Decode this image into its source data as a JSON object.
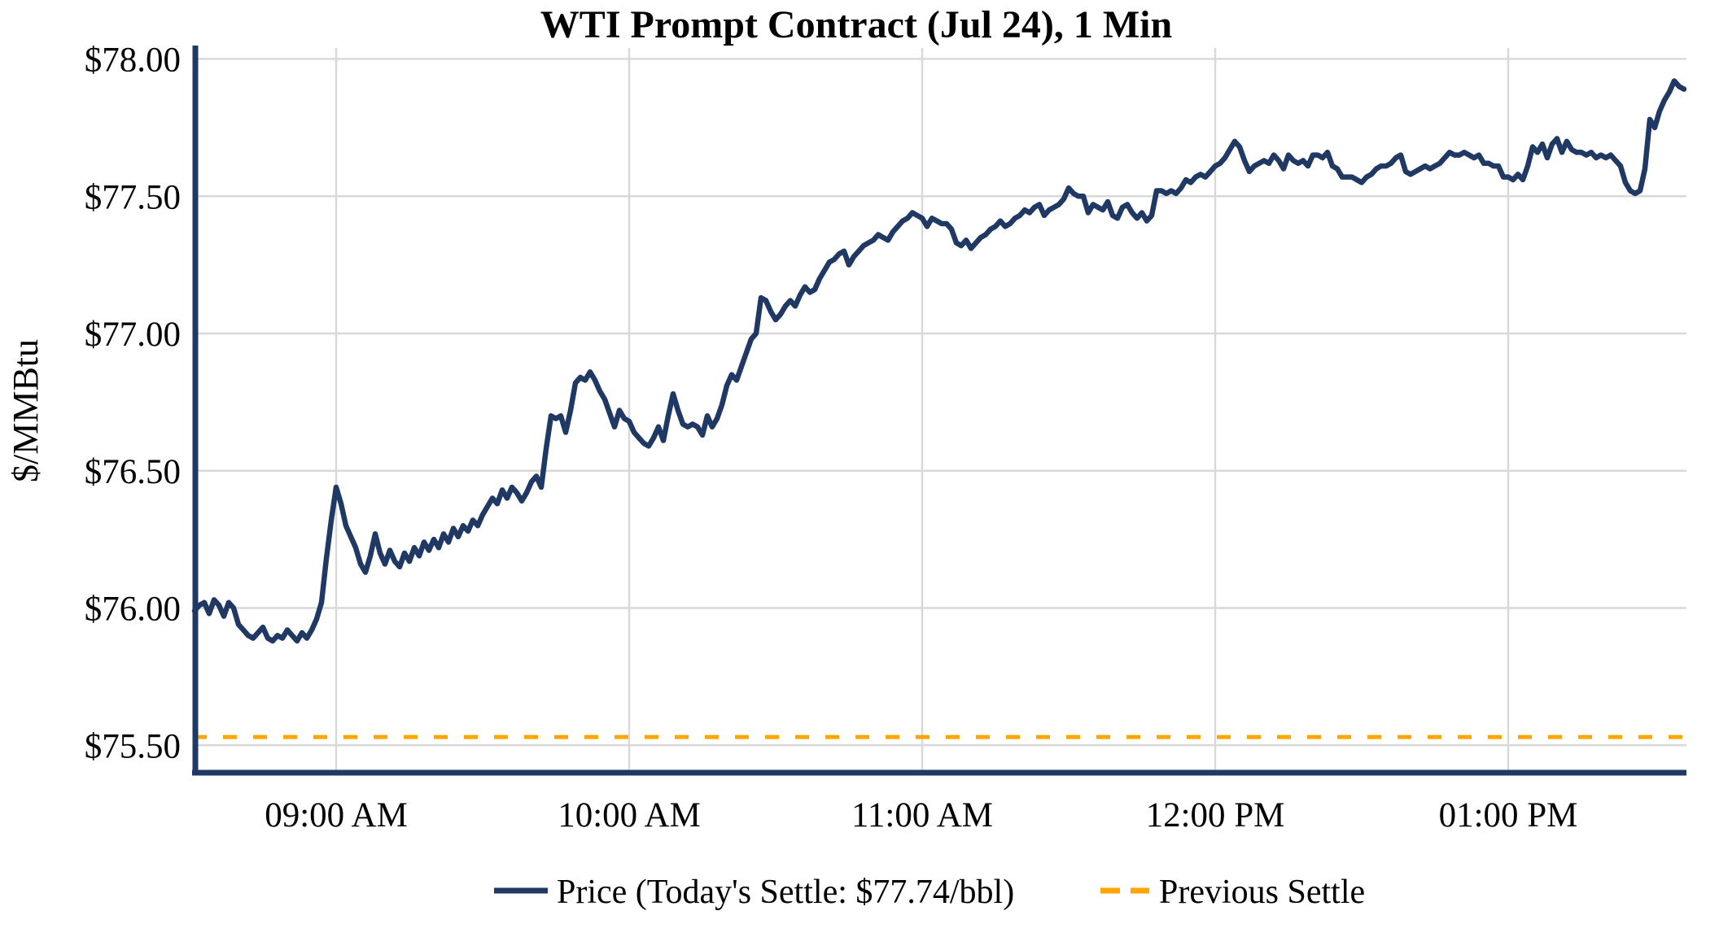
{
  "chart_data": {
    "type": "line",
    "title": "WTI Prompt Contract (Jul 24), 1 Min",
    "ylabel": "$/MMBtu",
    "xlabel": "",
    "grid": true,
    "legend_position": "bottom",
    "ylim": [
      75.4,
      78.04
    ],
    "y_ticks": [
      {
        "label": "$75.50",
        "value": 75.5
      },
      {
        "label": "$76.00",
        "value": 76.0
      },
      {
        "label": "$76.50",
        "value": 76.5
      },
      {
        "label": "$77.00",
        "value": 77.0
      },
      {
        "label": "$77.50",
        "value": 77.5
      },
      {
        "label": "$78.00",
        "value": 78.0
      }
    ],
    "x_start_time": "08:31 AM",
    "x_interval_minutes": 1,
    "x_ticks": [
      {
        "label": "09:00 AM",
        "minute_offset": 29
      },
      {
        "label": "10:00 AM",
        "minute_offset": 89
      },
      {
        "label": "11:00 AM",
        "minute_offset": 149
      },
      {
        "label": "12:00 PM",
        "minute_offset": 209
      },
      {
        "label": "01:00 PM",
        "minute_offset": 269
      }
    ],
    "series": [
      {
        "name": "Price (Today's Settle: $77.74/bbl)",
        "color": "#1f3864",
        "style": "solid",
        "values": [
          75.99,
          76.01,
          76.02,
          75.98,
          76.03,
          76.01,
          75.97,
          76.02,
          76.0,
          75.94,
          75.92,
          75.9,
          75.89,
          75.91,
          75.93,
          75.89,
          75.88,
          75.9,
          75.89,
          75.92,
          75.9,
          75.88,
          75.91,
          75.89,
          75.92,
          75.96,
          76.02,
          76.18,
          76.32,
          76.44,
          76.38,
          76.3,
          76.26,
          76.22,
          76.16,
          76.13,
          76.19,
          76.27,
          76.2,
          76.16,
          76.21,
          76.17,
          76.15,
          76.2,
          76.17,
          76.22,
          76.19,
          76.24,
          76.21,
          76.25,
          76.22,
          76.27,
          76.24,
          76.29,
          76.26,
          76.3,
          76.28,
          76.32,
          76.3,
          76.34,
          76.37,
          76.4,
          76.38,
          76.43,
          76.4,
          76.44,
          76.42,
          76.39,
          76.42,
          76.46,
          76.48,
          76.44,
          76.58,
          76.7,
          76.69,
          76.7,
          76.64,
          76.72,
          76.82,
          76.84,
          76.83,
          76.86,
          76.83,
          76.79,
          76.76,
          76.71,
          76.66,
          76.72,
          76.69,
          76.68,
          76.64,
          76.62,
          76.6,
          76.59,
          76.62,
          76.66,
          76.61,
          76.7,
          76.78,
          76.72,
          76.67,
          76.66,
          76.67,
          76.66,
          76.63,
          76.7,
          76.66,
          76.69,
          76.74,
          76.81,
          76.85,
          76.83,
          76.88,
          76.93,
          76.98,
          77.0,
          77.13,
          77.12,
          77.08,
          77.05,
          77.07,
          77.1,
          77.12,
          77.1,
          77.14,
          77.17,
          77.15,
          77.16,
          77.2,
          77.23,
          77.26,
          77.27,
          77.29,
          77.3,
          77.25,
          77.28,
          77.3,
          77.32,
          77.33,
          77.34,
          77.36,
          77.35,
          77.34,
          77.37,
          77.39,
          77.41,
          77.42,
          77.44,
          77.43,
          77.42,
          77.39,
          77.42,
          77.41,
          77.4,
          77.4,
          77.38,
          77.33,
          77.32,
          77.34,
          77.31,
          77.33,
          77.35,
          77.36,
          77.38,
          77.39,
          77.41,
          77.39,
          77.4,
          77.42,
          77.43,
          77.45,
          77.44,
          77.46,
          77.47,
          77.43,
          77.45,
          77.46,
          77.47,
          77.49,
          77.53,
          77.51,
          77.5,
          77.5,
          77.44,
          77.47,
          77.46,
          77.45,
          77.48,
          77.43,
          77.42,
          77.46,
          77.47,
          77.44,
          77.42,
          77.44,
          77.41,
          77.43,
          77.52,
          77.52,
          77.51,
          77.52,
          77.51,
          77.53,
          77.56,
          77.55,
          77.57,
          77.58,
          77.57,
          77.59,
          77.61,
          77.62,
          77.64,
          77.67,
          77.7,
          77.68,
          77.63,
          77.59,
          77.61,
          77.62,
          77.63,
          77.62,
          77.65,
          77.63,
          77.6,
          77.65,
          77.63,
          77.62,
          77.63,
          77.61,
          77.65,
          77.65,
          77.64,
          77.66,
          77.61,
          77.6,
          77.57,
          77.57,
          77.57,
          77.56,
          77.55,
          77.57,
          77.58,
          77.6,
          77.61,
          77.61,
          77.62,
          77.64,
          77.65,
          77.59,
          77.58,
          77.59,
          77.6,
          77.61,
          77.6,
          77.61,
          77.62,
          77.64,
          77.66,
          77.65,
          77.65,
          77.66,
          77.65,
          77.64,
          77.65,
          77.62,
          77.62,
          77.61,
          77.61,
          77.57,
          77.57,
          77.56,
          77.58,
          77.56,
          77.61,
          77.68,
          77.66,
          77.69,
          77.64,
          77.69,
          77.71,
          77.66,
          77.7,
          77.67,
          77.66,
          77.66,
          77.65,
          77.66,
          77.64,
          77.65,
          77.64,
          77.65,
          77.63,
          77.61,
          77.55,
          77.52,
          77.51,
          77.52,
          77.6,
          77.78,
          77.75,
          77.81,
          77.85,
          77.88,
          77.92,
          77.9,
          77.89
        ]
      },
      {
        "name": "Previous Settle",
        "color": "#ffa500",
        "style": "dashed",
        "value": 75.53
      }
    ]
  },
  "colors": {
    "price_line": "#1f3864",
    "previous_settle_line": "#ffa500",
    "axis_spine": "#1f3864",
    "gridline": "#d9d9d9",
    "background": "#ffffff",
    "text": "#000000"
  }
}
